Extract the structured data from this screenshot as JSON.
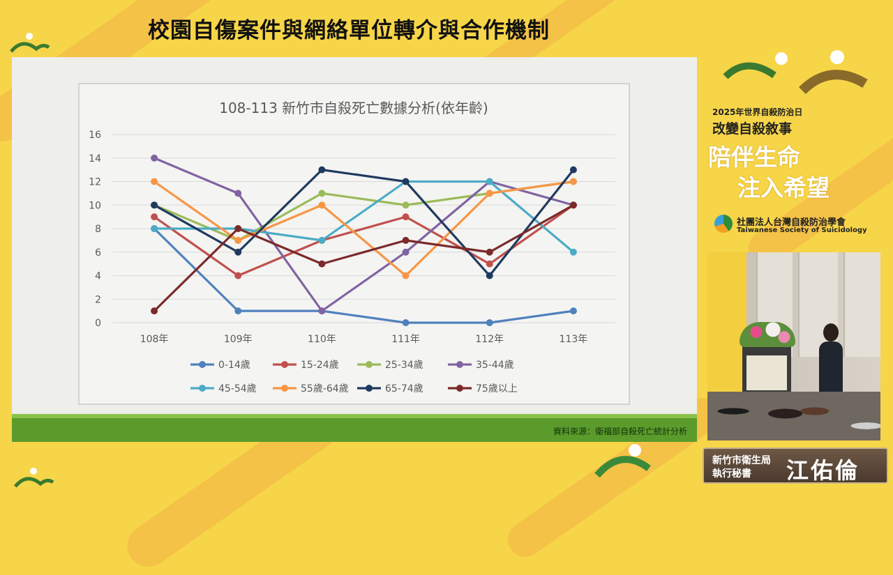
{
  "headline": "校園自傷案件與網絡單位轉介與合作機制",
  "slide": {
    "source_note": "資料來源：衛福部自殺死亡統計分析"
  },
  "chart_data": {
    "type": "line",
    "title": "108-113 新竹市自殺死亡數據分析(依年齡)",
    "categories": [
      "108年",
      "109年",
      "110年",
      "111年",
      "112年",
      "113年"
    ],
    "ylim": [
      0,
      16
    ],
    "yticks": [
      "0",
      "2",
      "4",
      "6",
      "8",
      "10",
      "12",
      "14",
      "16"
    ],
    "grid": true,
    "legend_position": "bottom",
    "series": [
      {
        "name": "0-14歲",
        "color": "#4f81bd",
        "values": [
          8,
          1,
          1,
          0,
          0,
          1
        ]
      },
      {
        "name": "15-24歲",
        "color": "#c0504d",
        "values": [
          9,
          4,
          7,
          9,
          5,
          10
        ]
      },
      {
        "name": "25-34歲",
        "color": "#9bbb59",
        "values": [
          10,
          7,
          11,
          10,
          11,
          12
        ]
      },
      {
        "name": "35-44歲",
        "color": "#8064a2",
        "values": [
          14,
          11,
          1,
          6,
          12,
          10
        ]
      },
      {
        "name": "45-54歲",
        "color": "#4bacc6",
        "values": [
          8,
          8,
          7,
          12,
          12,
          6
        ]
      },
      {
        "name": "55歲-64歲",
        "color": "#f79646",
        "values": [
          12,
          7,
          10,
          4,
          11,
          12
        ]
      },
      {
        "name": "65-74歲",
        "color": "#1f3a5f",
        "values": [
          10,
          6,
          13,
          12,
          4,
          13
        ]
      },
      {
        "name": "75歲以上",
        "color": "#7b2a2a",
        "values": [
          1,
          8,
          5,
          7,
          6,
          10
        ]
      }
    ]
  },
  "brand": {
    "line1": "2025年世界自殺防治日",
    "line2": "改變自殺敘事",
    "line3": "陪伴生命",
    "line4": "注入希望",
    "org_name": "社團法人台灣自殺防治學會",
    "org_name_en": "Taiwanese Society of Suicidology"
  },
  "nameplate": {
    "org": "新竹市衛生局",
    "title": "執行秘書",
    "name": "江佑倫"
  },
  "colors": {
    "background": "#f7d548",
    "slide_footer": "#5a9b2c"
  }
}
